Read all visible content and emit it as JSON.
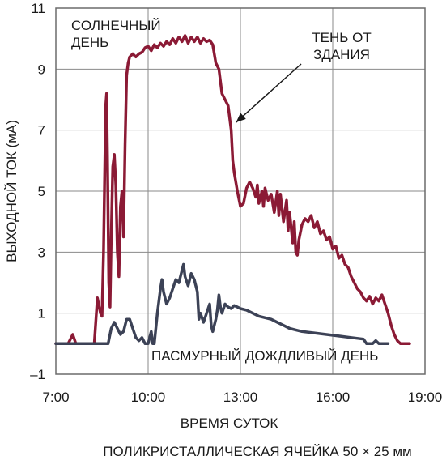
{
  "chart_data": {
    "type": "line",
    "xlabel": "ВРЕМЯ СУТОК",
    "ylabel": "ВЫХОДНОЙ ТОК (мА)",
    "caption": "ПОЛИКРИСТАЛЛИЧЕСКАЯ ЯЧЕЙКА 50 × 25 мм",
    "xlim": [
      7,
      19
    ],
    "ylim": [
      -1,
      11
    ],
    "x_ticks": [
      7,
      10,
      13,
      16,
      19
    ],
    "x_tick_labels": [
      "7:00",
      "10:00",
      "13:00",
      "16:00",
      "19:00"
    ],
    "y_ticks": [
      -1,
      1,
      3,
      5,
      7,
      9,
      11
    ],
    "y_tick_labels": [
      "–1",
      "1",
      "3",
      "5",
      "7",
      "9",
      "11"
    ],
    "grid": true,
    "annotations": [
      {
        "text_lines": [
          "СОЛНЕЧНЫЙ",
          "ДЕНЬ"
        ]
      },
      {
        "text_lines": [
          "ТЕНЬ ОТ",
          "ЗДАНИЯ"
        ],
        "arrow_to": [
          12.75,
          7.2
        ]
      },
      {
        "text_lines": [
          "ПАСМУРНЫЙ ДОЖДЛИВЫЙ ДЕНЬ"
        ]
      }
    ],
    "series": [
      {
        "name": "",
        "color": "#8b1a35",
        "points": [
          [
            7.0,
            0.0
          ],
          [
            7.4,
            0.0
          ],
          [
            7.55,
            0.3
          ],
          [
            7.65,
            0.0
          ],
          [
            8.1,
            0.0
          ],
          [
            8.25,
            0.0
          ],
          [
            8.35,
            1.5
          ],
          [
            8.45,
            1.0
          ],
          [
            8.5,
            0.9
          ],
          [
            8.55,
            3.0
          ],
          [
            8.62,
            7.8
          ],
          [
            8.65,
            8.2
          ],
          [
            8.68,
            6.0
          ],
          [
            8.72,
            2.0
          ],
          [
            8.76,
            1.2
          ],
          [
            8.8,
            3.5
          ],
          [
            8.85,
            5.8
          ],
          [
            8.9,
            6.2
          ],
          [
            8.95,
            5.2
          ],
          [
            9.0,
            3.0
          ],
          [
            9.05,
            2.2
          ],
          [
            9.1,
            4.5
          ],
          [
            9.15,
            5.0
          ],
          [
            9.2,
            3.5
          ],
          [
            9.25,
            6.5
          ],
          [
            9.3,
            8.8
          ],
          [
            9.35,
            9.2
          ],
          [
            9.4,
            9.4
          ],
          [
            9.5,
            9.5
          ],
          [
            9.6,
            9.4
          ],
          [
            9.7,
            9.5
          ],
          [
            9.8,
            9.55
          ],
          [
            9.9,
            9.7
          ],
          [
            10.0,
            9.75
          ],
          [
            10.1,
            9.6
          ],
          [
            10.2,
            9.8
          ],
          [
            10.3,
            9.7
          ],
          [
            10.4,
            9.85
          ],
          [
            10.5,
            9.75
          ],
          [
            10.6,
            9.9
          ],
          [
            10.7,
            9.8
          ],
          [
            10.8,
            10.0
          ],
          [
            10.9,
            9.85
          ],
          [
            11.0,
            10.05
          ],
          [
            11.1,
            9.9
          ],
          [
            11.2,
            10.1
          ],
          [
            11.3,
            9.85
          ],
          [
            11.4,
            10.05
          ],
          [
            11.5,
            9.9
          ],
          [
            11.6,
            10.05
          ],
          [
            11.7,
            9.85
          ],
          [
            11.8,
            10.0
          ],
          [
            11.9,
            9.9
          ],
          [
            12.0,
            9.95
          ],
          [
            12.1,
            9.8
          ],
          [
            12.15,
            9.5
          ],
          [
            12.2,
            9.2
          ],
          [
            12.3,
            9.0
          ],
          [
            12.35,
            8.6
          ],
          [
            12.4,
            8.2
          ],
          [
            12.5,
            8.0
          ],
          [
            12.6,
            7.8
          ],
          [
            12.7,
            7.0
          ],
          [
            12.75,
            6.0
          ],
          [
            12.8,
            5.6
          ],
          [
            12.9,
            5.0
          ],
          [
            13.0,
            4.5
          ],
          [
            13.1,
            4.6
          ],
          [
            13.2,
            5.1
          ],
          [
            13.3,
            5.3
          ],
          [
            13.4,
            5.1
          ],
          [
            13.5,
            4.8
          ],
          [
            13.55,
            5.2
          ],
          [
            13.6,
            4.6
          ],
          [
            13.7,
            5.0
          ],
          [
            13.75,
            4.5
          ],
          [
            13.8,
            5.1
          ],
          [
            13.9,
            4.7
          ],
          [
            14.0,
            4.9
          ],
          [
            14.1,
            4.3
          ],
          [
            14.2,
            5.0
          ],
          [
            14.25,
            4.2
          ],
          [
            14.3,
            4.9
          ],
          [
            14.4,
            4.0
          ],
          [
            14.5,
            4.7
          ],
          [
            14.55,
            3.7
          ],
          [
            14.6,
            4.3
          ],
          [
            14.7,
            3.3
          ],
          [
            14.75,
            4.0
          ],
          [
            14.8,
            3.0
          ],
          [
            14.85,
            2.9
          ],
          [
            14.9,
            3.4
          ],
          [
            15.0,
            3.9
          ],
          [
            15.1,
            4.1
          ],
          [
            15.2,
            4.0
          ],
          [
            15.3,
            4.2
          ],
          [
            15.4,
            3.8
          ],
          [
            15.5,
            4.0
          ],
          [
            15.6,
            3.6
          ],
          [
            15.7,
            3.7
          ],
          [
            15.8,
            3.4
          ],
          [
            15.9,
            3.5
          ],
          [
            16.0,
            3.1
          ],
          [
            16.1,
            3.2
          ],
          [
            16.2,
            2.8
          ],
          [
            16.3,
            2.9
          ],
          [
            16.4,
            2.6
          ],
          [
            16.5,
            2.5
          ],
          [
            16.6,
            2.2
          ],
          [
            16.7,
            2.0
          ],
          [
            16.8,
            1.8
          ],
          [
            16.9,
            1.7
          ],
          [
            17.0,
            1.5
          ],
          [
            17.1,
            1.4
          ],
          [
            17.2,
            1.55
          ],
          [
            17.3,
            1.3
          ],
          [
            17.4,
            1.5
          ],
          [
            17.5,
            1.4
          ],
          [
            17.6,
            1.6
          ],
          [
            17.7,
            1.3
          ],
          [
            17.8,
            1.0
          ],
          [
            17.9,
            0.6
          ],
          [
            18.0,
            0.3
          ],
          [
            18.1,
            0.1
          ],
          [
            18.2,
            0.0
          ],
          [
            18.5,
            0.0
          ]
        ]
      },
      {
        "name": "",
        "color": "#3c4256",
        "points": [
          [
            7.0,
            0.0
          ],
          [
            8.5,
            0.0
          ],
          [
            8.7,
            0.0
          ],
          [
            8.8,
            0.5
          ],
          [
            8.9,
            0.7
          ],
          [
            9.0,
            0.5
          ],
          [
            9.1,
            0.3
          ],
          [
            9.2,
            0.4
          ],
          [
            9.3,
            0.8
          ],
          [
            9.4,
            0.8
          ],
          [
            9.5,
            0.5
          ],
          [
            9.6,
            0.2
          ],
          [
            9.7,
            0.1
          ],
          [
            9.8,
            0.2
          ],
          [
            9.9,
            0.0
          ],
          [
            10.0,
            0.0
          ],
          [
            10.05,
            0.2
          ],
          [
            10.1,
            0.4
          ],
          [
            10.15,
            0.0
          ],
          [
            10.2,
            0.0
          ],
          [
            10.3,
            1.0
          ],
          [
            10.4,
            1.8
          ],
          [
            10.45,
            2.1
          ],
          [
            10.5,
            1.7
          ],
          [
            10.6,
            1.3
          ],
          [
            10.7,
            1.5
          ],
          [
            10.8,
            1.8
          ],
          [
            10.9,
            2.1
          ],
          [
            11.0,
            2.0
          ],
          [
            11.1,
            2.4
          ],
          [
            11.15,
            2.6
          ],
          [
            11.2,
            2.2
          ],
          [
            11.3,
            1.9
          ],
          [
            11.4,
            2.3
          ],
          [
            11.5,
            2.1
          ],
          [
            11.6,
            1.7
          ],
          [
            11.65,
            0.8
          ],
          [
            11.7,
            1.0
          ],
          [
            11.8,
            0.7
          ],
          [
            11.9,
            1.0
          ],
          [
            12.0,
            1.3
          ],
          [
            12.05,
            0.6
          ],
          [
            12.1,
            0.4
          ],
          [
            12.2,
            0.8
          ],
          [
            12.25,
            1.1
          ],
          [
            12.3,
            1.6
          ],
          [
            12.35,
            1.2
          ],
          [
            12.4,
            1.0
          ],
          [
            12.5,
            1.3
          ],
          [
            12.6,
            1.2
          ],
          [
            12.7,
            1.15
          ],
          [
            12.8,
            1.25
          ],
          [
            12.9,
            1.2
          ],
          [
            13.0,
            1.15
          ],
          [
            13.2,
            1.1
          ],
          [
            13.4,
            1.0
          ],
          [
            13.6,
            0.9
          ],
          [
            13.8,
            0.85
          ],
          [
            14.0,
            0.8
          ],
          [
            14.2,
            0.7
          ],
          [
            14.4,
            0.6
          ],
          [
            14.6,
            0.5
          ],
          [
            14.8,
            0.45
          ],
          [
            15.0,
            0.4
          ],
          [
            15.4,
            0.35
          ],
          [
            15.8,
            0.3
          ],
          [
            16.2,
            0.25
          ],
          [
            16.6,
            0.2
          ],
          [
            17.0,
            0.15
          ],
          [
            17.1,
            0.0
          ],
          [
            17.3,
            0.0
          ],
          [
            17.4,
            0.1
          ],
          [
            17.5,
            0.0
          ],
          [
            17.8,
            0.0
          ]
        ]
      }
    ]
  }
}
